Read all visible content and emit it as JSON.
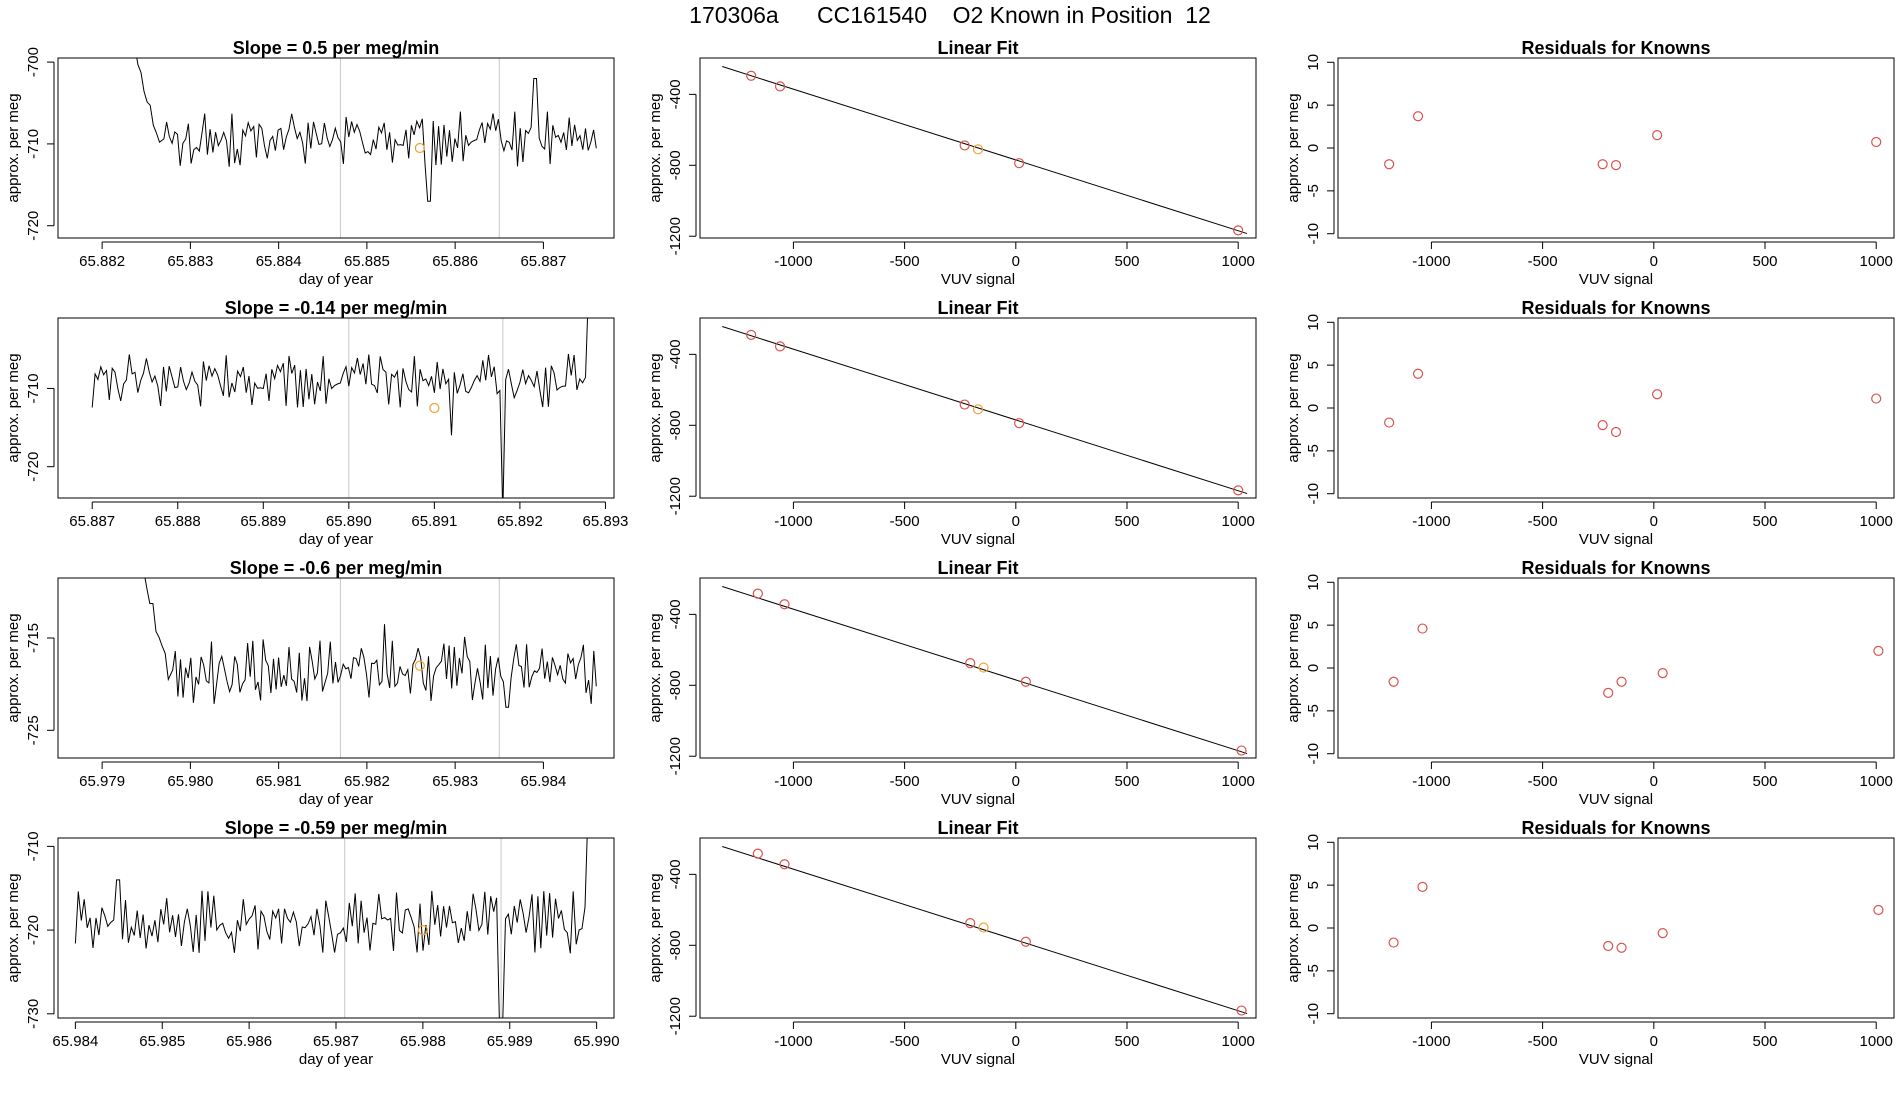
{
  "figure": {
    "title": "170306a      CC161540    O2 Known in Position  12",
    "colors": {
      "axis": "#000000",
      "trace": "#000000",
      "fit_line": "#000000",
      "known_points": "#d9534f",
      "highlight_point": "#f0a030",
      "vline": "#c8c8c8"
    }
  },
  "chart_data": [
    {
      "type": "line",
      "row": 1,
      "column": "timeseries",
      "title": "Slope =  0.5  per meg/min",
      "xlabel": "day of year",
      "ylabel": "approx. per meg",
      "xlim": [
        65.8815,
        65.8878
      ],
      "ylim": [
        -721.5,
        -699.5
      ],
      "xticks": [
        65.882,
        65.883,
        65.884,
        65.885,
        65.886,
        65.887
      ],
      "xtick_labels": [
        "65.882",
        "65.883",
        "65.884",
        "65.885",
        "65.886",
        "65.887"
      ],
      "yticks": [
        -700,
        -710,
        -720
      ],
      "ytick_labels": [
        "-700",
        "-710",
        "-720"
      ],
      "trace_start": 65.8824,
      "trace_end": 65.8876,
      "trace_n": 160,
      "lead_in_from": -690,
      "lead_in_steps": 10,
      "trace_mean": -709.5,
      "trace_amp": 2.5,
      "spikes": [
        [
          65.8869,
          -702
        ],
        [
          65.8857,
          -717
        ]
      ],
      "vlines": [
        65.8847,
        65.8865
      ],
      "highlight": {
        "x": 65.8856,
        "y": -710.5
      }
    },
    {
      "type": "scatter",
      "row": 1,
      "column": "linear_fit",
      "title": "Linear Fit",
      "xlabel": "VUV signal",
      "ylabel": "approx. per meg",
      "xlim": [
        -1420,
        1080
      ],
      "ylim": [
        -1210,
        -195
      ],
      "xticks": [
        -1000,
        -500,
        0,
        500,
        1000
      ],
      "xtick_labels": [
        "-1000",
        "-500",
        "0",
        "500",
        "1000"
      ],
      "yticks": [
        -400,
        -800,
        -1200
      ],
      "ytick_labels": [
        "-400",
        "-800",
        "-1200"
      ],
      "points": [
        [
          -1190,
          -295
        ],
        [
          -1060,
          -355
        ],
        [
          -230,
          -688
        ],
        [
          -170,
          -710
        ],
        [
          15,
          -788
        ],
        [
          1000,
          -1167
        ]
      ],
      "highlight_index": 3,
      "fit_line": [
        [
          -1320,
          -243
        ],
        [
          1040,
          -1185
        ]
      ]
    },
    {
      "type": "scatter",
      "row": 1,
      "column": "residuals",
      "title": "Residuals for Knowns",
      "xlabel": "VUV signal",
      "ylabel": "approx. per meg",
      "xlim": [
        -1420,
        1080
      ],
      "ylim": [
        -10.5,
        10.5
      ],
      "xticks": [
        -1000,
        -500,
        0,
        500,
        1000
      ],
      "xtick_labels": [
        "-1000",
        "-500",
        "0",
        "500",
        "1000"
      ],
      "yticks": [
        10,
        5,
        0,
        -5,
        -10
      ],
      "ytick_labels": [
        "10",
        "5",
        "0",
        "-5",
        "-10"
      ],
      "points": [
        [
          -1190,
          -1.9
        ],
        [
          -1060,
          3.7
        ],
        [
          -230,
          -1.9
        ],
        [
          -170,
          -2.0
        ],
        [
          15,
          1.5
        ],
        [
          1000,
          0.7
        ]
      ]
    },
    {
      "type": "line",
      "row": 2,
      "column": "timeseries",
      "title": "Slope =  -0.14  per meg/min",
      "xlabel": "day of year",
      "ylabel": "approx. per meg",
      "xlim": [
        65.8866,
        65.8931
      ],
      "ylim": [
        -724,
        -701
      ],
      "xticks": [
        65.887,
        65.888,
        65.889,
        65.89,
        65.891,
        65.892,
        65.893
      ],
      "xtick_labels": [
        "65.887",
        "65.888",
        "65.889",
        "65.890",
        "65.891",
        "65.892",
        "65.893"
      ],
      "yticks": [
        -710,
        -720
      ],
      "ytick_labels": [
        "-710",
        "-720"
      ],
      "trace_start": 65.887,
      "trace_end": 65.8928,
      "trace_n": 175,
      "lead_in_from": null,
      "lead_in_steps": 0,
      "trace_mean": -709,
      "trace_amp": 2.5,
      "spikes": [
        [
          65.8918,
          -726
        ],
        [
          65.8928,
          -698
        ],
        [
          65.8912,
          -716
        ]
      ],
      "vlines": [
        65.89,
        65.8918
      ],
      "highlight": {
        "x": 65.891,
        "y": -712.5
      }
    },
    {
      "type": "scatter",
      "row": 2,
      "column": "linear_fit",
      "title": "Linear Fit",
      "xlabel": "VUV signal",
      "ylabel": "approx. per meg",
      "xlim": [
        -1420,
        1080
      ],
      "ylim": [
        -1210,
        -195
      ],
      "xticks": [
        -1000,
        -500,
        0,
        500,
        1000
      ],
      "xtick_labels": [
        "-1000",
        "-500",
        "0",
        "500",
        "1000"
      ],
      "yticks": [
        -400,
        -800,
        -1200
      ],
      "ytick_labels": [
        "-400",
        "-800",
        "-1200"
      ],
      "points": [
        [
          -1190,
          -290
        ],
        [
          -1060,
          -355
        ],
        [
          -230,
          -683
        ],
        [
          -170,
          -710
        ],
        [
          15,
          -788
        ],
        [
          1000,
          -1167
        ]
      ],
      "highlight_index": 3,
      "fit_line": [
        [
          -1320,
          -243
        ],
        [
          1040,
          -1185
        ]
      ]
    },
    {
      "type": "scatter",
      "row": 2,
      "column": "residuals",
      "title": "Residuals for Knowns",
      "xlabel": "VUV signal",
      "ylabel": "approx. per meg",
      "xlim": [
        -1420,
        1080
      ],
      "ylim": [
        -10.5,
        10.5
      ],
      "xticks": [
        -1000,
        -500,
        0,
        500,
        1000
      ],
      "xtick_labels": [
        "-1000",
        "-500",
        "0",
        "500",
        "1000"
      ],
      "yticks": [
        10,
        5,
        0,
        -5,
        -10
      ],
      "ytick_labels": [
        "10",
        "5",
        "0",
        "-5",
        "-10"
      ],
      "points": [
        [
          -1190,
          -1.7
        ],
        [
          -1060,
          4.0
        ],
        [
          -230,
          -2.0
        ],
        [
          -170,
          -2.8
        ],
        [
          15,
          1.6
        ],
        [
          1000,
          1.1
        ]
      ]
    },
    {
      "type": "line",
      "row": 3,
      "column": "timeseries",
      "title": "Slope =  -0.6  per meg/min",
      "xlabel": "day of year",
      "ylabel": "approx. per meg",
      "xlim": [
        65.9785,
        65.9848
      ],
      "ylim": [
        -728,
        -708.5
      ],
      "xticks": [
        65.979,
        65.98,
        65.981,
        65.982,
        65.983,
        65.984
      ],
      "xtick_labels": [
        "65.979",
        "65.980",
        "65.981",
        "65.982",
        "65.983",
        "65.984"
      ],
      "yticks": [
        -715,
        -725
      ],
      "ytick_labels": [
        "-715",
        "-725"
      ],
      "trace_start": 65.9795,
      "trace_end": 65.9846,
      "trace_n": 165,
      "lead_in_from": -700,
      "lead_in_steps": 10,
      "trace_mean": -718.5,
      "trace_amp": 2.6,
      "spikes": [
        [
          65.9822,
          -713.5
        ],
        [
          65.9836,
          -722.5
        ]
      ],
      "vlines": [
        65.9817,
        65.9835
      ],
      "highlight": {
        "x": 65.9826,
        "y": -718
      }
    },
    {
      "type": "scatter",
      "row": 3,
      "column": "linear_fit",
      "title": "Linear Fit",
      "xlabel": "VUV signal",
      "ylabel": "approx. per meg",
      "xlim": [
        -1420,
        1080
      ],
      "ylim": [
        -1210,
        -195
      ],
      "xticks": [
        -1000,
        -500,
        0,
        500,
        1000
      ],
      "xtick_labels": [
        "-1000",
        "-500",
        "0",
        "500",
        "1000"
      ],
      "yticks": [
        -400,
        -800,
        -1200
      ],
      "ytick_labels": [
        "-400",
        "-800",
        "-1200"
      ],
      "points": [
        [
          -1160,
          -283
        ],
        [
          -1040,
          -343
        ],
        [
          -205,
          -675
        ],
        [
          -145,
          -700
        ],
        [
          45,
          -780
        ],
        [
          1015,
          -1168
        ]
      ],
      "highlight_index": 3,
      "fit_line": [
        [
          -1320,
          -243
        ],
        [
          1040,
          -1185
        ]
      ]
    },
    {
      "type": "scatter",
      "row": 3,
      "column": "residuals",
      "title": "Residuals for Knowns",
      "xlabel": "VUV signal",
      "ylabel": "approx. per meg",
      "xlim": [
        -1420,
        1080
      ],
      "ylim": [
        -10.5,
        10.5
      ],
      "xticks": [
        -1000,
        -500,
        0,
        500,
        1000
      ],
      "xtick_labels": [
        "-1000",
        "-500",
        "0",
        "500",
        "1000"
      ],
      "yticks": [
        10,
        5,
        0,
        -5,
        -10
      ],
      "ytick_labels": [
        "10",
        "5",
        "0",
        "-5",
        "-10"
      ],
      "points": [
        [
          -1170,
          -1.6
        ],
        [
          -1040,
          4.6
        ],
        [
          -205,
          -2.9
        ],
        [
          -145,
          -1.6
        ],
        [
          40,
          -0.6
        ],
        [
          1010,
          2.0
        ]
      ]
    },
    {
      "type": "line",
      "row": 4,
      "column": "timeseries",
      "title": "Slope =  -0.59  per meg/min",
      "xlabel": "day of year",
      "ylabel": "approx. per meg",
      "xlim": [
        65.9838,
        65.9902
      ],
      "ylim": [
        -730.5,
        -709
      ],
      "xticks": [
        65.984,
        65.985,
        65.986,
        65.987,
        65.988,
        65.989,
        65.99
      ],
      "xtick_labels": [
        "65.984",
        "65.985",
        "65.986",
        "65.987",
        "65.988",
        "65.989",
        "65.990"
      ],
      "yticks": [
        -710,
        -720,
        -730
      ],
      "ytick_labels": [
        "-710",
        "-720",
        "-730"
      ],
      "trace_start": 65.984,
      "trace_end": 65.9899,
      "trace_n": 175,
      "lead_in_from": null,
      "lead_in_steps": 0,
      "trace_mean": -719,
      "trace_amp": 2.7,
      "spikes": [
        [
          65.9889,
          -732
        ],
        [
          65.9899,
          -706
        ],
        [
          65.9845,
          -714
        ]
      ],
      "vlines": [
        65.9871,
        65.9889
      ],
      "highlight": {
        "x": 65.988,
        "y": -720
      }
    },
    {
      "type": "scatter",
      "row": 4,
      "column": "linear_fit",
      "title": "Linear Fit",
      "xlabel": "VUV signal",
      "ylabel": "approx. per meg",
      "xlim": [
        -1420,
        1080
      ],
      "ylim": [
        -1210,
        -195
      ],
      "xticks": [
        -1000,
        -500,
        0,
        500,
        1000
      ],
      "xtick_labels": [
        "-1000",
        "-500",
        "0",
        "500",
        "1000"
      ],
      "yticks": [
        -400,
        -800,
        -1200
      ],
      "ytick_labels": [
        "-400",
        "-800",
        "-1200"
      ],
      "points": [
        [
          -1160,
          -283
        ],
        [
          -1040,
          -343
        ],
        [
          -205,
          -675
        ],
        [
          -145,
          -700
        ],
        [
          45,
          -780
        ],
        [
          1015,
          -1168
        ]
      ],
      "highlight_index": 3,
      "fit_line": [
        [
          -1320,
          -243
        ],
        [
          1040,
          -1185
        ]
      ]
    },
    {
      "type": "scatter",
      "row": 4,
      "column": "residuals",
      "title": "Residuals for Knowns",
      "xlabel": "VUV signal",
      "ylabel": "approx. per meg",
      "xlim": [
        -1420,
        1080
      ],
      "ylim": [
        -10.5,
        10.5
      ],
      "xticks": [
        -1000,
        -500,
        0,
        500,
        1000
      ],
      "xtick_labels": [
        "-1000",
        "-500",
        "0",
        "500",
        "1000"
      ],
      "yticks": [
        10,
        5,
        0,
        -5,
        -10
      ],
      "ytick_labels": [
        "10",
        "5",
        "0",
        "-5",
        "-10"
      ],
      "points": [
        [
          -1170,
          -1.7
        ],
        [
          -1040,
          4.8
        ],
        [
          -205,
          -2.1
        ],
        [
          -145,
          -2.3
        ],
        [
          40,
          -0.6
        ],
        [
          1010,
          2.1
        ]
      ]
    }
  ]
}
